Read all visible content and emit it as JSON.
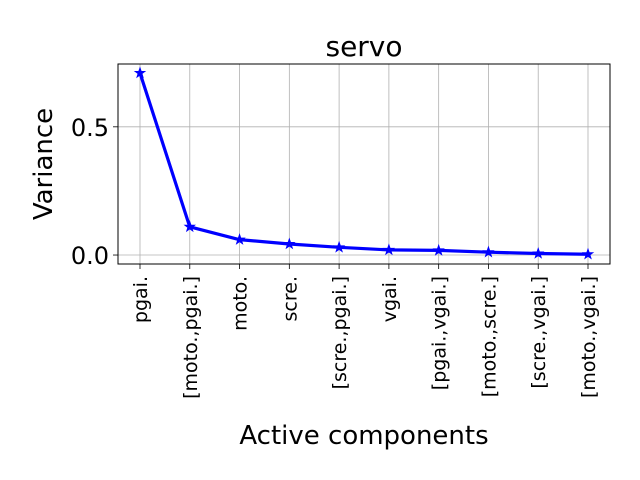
{
  "chart_data": {
    "type": "line",
    "title": "servo",
    "xlabel": "Active components",
    "ylabel": "Variance",
    "categories": [
      "pgai.",
      "[moto.,pgai.]",
      "moto.",
      "scre.",
      "[scre.,pgai.]",
      "vgai.",
      "[pgai.,vgai.]",
      "[moto.,scre.]",
      "[scre.,vgai.]",
      "[moto.,vgai.]"
    ],
    "series": [
      {
        "values": [
          0.71,
          0.11,
          0.06,
          0.043,
          0.03,
          0.02,
          0.018,
          0.011,
          0.006,
          0.003
        ],
        "color": "#0000ff",
        "marker": "star"
      }
    ],
    "yticks": [
      0.0,
      0.5
    ],
    "ytick_labels": [
      "0.0",
      "0.5"
    ],
    "ylim": [
      -0.035,
      0.745
    ],
    "grid": true
  }
}
